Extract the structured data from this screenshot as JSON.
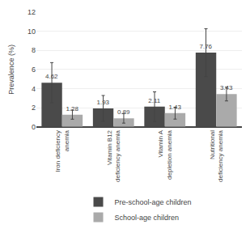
{
  "chart_data": {
    "type": "bar",
    "categories": [
      "Iron deficiency\nanemia",
      "Vitamin B12\ndeficiency anemia",
      "Vitamin A\ndepletion anemia",
      "Nutritional\ndeficiency anemia"
    ],
    "series": [
      {
        "name": "Pre-school-age children",
        "color": "#4a4a4a",
        "values": [
          4.62,
          1.93,
          2.11,
          7.76
        ],
        "errors": [
          2.1,
          1.35,
          1.55,
          2.5
        ]
      },
      {
        "name": "School-age children",
        "color": "#aaaaaa",
        "values": [
          1.28,
          0.89,
          1.43,
          3.43
        ],
        "errors": [
          0.48,
          0.5,
          0.62,
          0.72
        ]
      }
    ],
    "ylabel": "Prevalence (%)",
    "ylim": [
      0,
      12
    ],
    "yticks": [
      0,
      2,
      4,
      6,
      8,
      10,
      12
    ],
    "grid": true,
    "legend": "bottom",
    "data_labels": true
  }
}
